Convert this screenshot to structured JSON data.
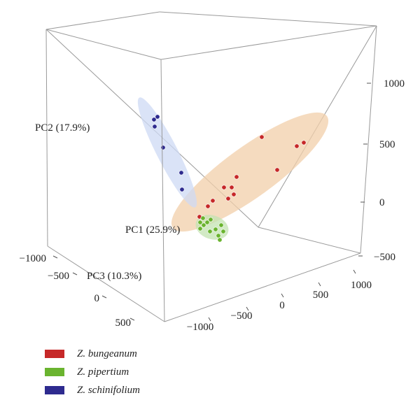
{
  "chart_data": {
    "type": "scatter",
    "title": "",
    "axes": {
      "pc1": {
        "label": "PC1 (25.9%)",
        "ticks": [
          "−1000",
          "−500",
          "0",
          "500",
          "1000"
        ]
      },
      "pc2": {
        "label": "PC2 (17.9%)",
        "ticks": [
          "−500",
          "0",
          "500",
          "1000"
        ]
      },
      "pc3": {
        "label": "PC3 (10.3%)",
        "ticks": [
          "−1000",
          "−500",
          "0",
          "500"
        ]
      }
    },
    "grid": false,
    "legend_position": "bottom-left",
    "series": [
      {
        "name": "Z. bungeanum",
        "color": "#c62828",
        "ellipse_color": "#f2cfa9",
        "points": [
          [
            374,
            196
          ],
          [
            434,
            204
          ],
          [
            424,
            209
          ],
          [
            396,
            243
          ],
          [
            338,
            253
          ],
          [
            331,
            268
          ],
          [
            320,
            268
          ],
          [
            334,
            278
          ],
          [
            304,
            287
          ],
          [
            326,
            284
          ],
          [
            297,
            295
          ],
          [
            285,
            310
          ]
        ]
      },
      {
        "name": "Z. pipertium",
        "color": "#6ab42f",
        "ellipse_color": "#c3e3b1",
        "points": [
          [
            290,
            312
          ],
          [
            301,
            314
          ],
          [
            296,
            318
          ],
          [
            286,
            318
          ],
          [
            291,
            322
          ],
          [
            316,
            322
          ],
          [
            286,
            327
          ],
          [
            308,
            328
          ],
          [
            300,
            331
          ],
          [
            319,
            331
          ],
          [
            312,
            337
          ],
          [
            314,
            343
          ]
        ]
      },
      {
        "name": "Z. schinifolium",
        "color": "#2e2b8f",
        "ellipse_color": "#cdd9f4",
        "points": [
          [
            225,
            167
          ],
          [
            220,
            171
          ],
          [
            221,
            181
          ],
          [
            233,
            211
          ],
          [
            259,
            247
          ],
          [
            260,
            271
          ]
        ]
      }
    ]
  }
}
